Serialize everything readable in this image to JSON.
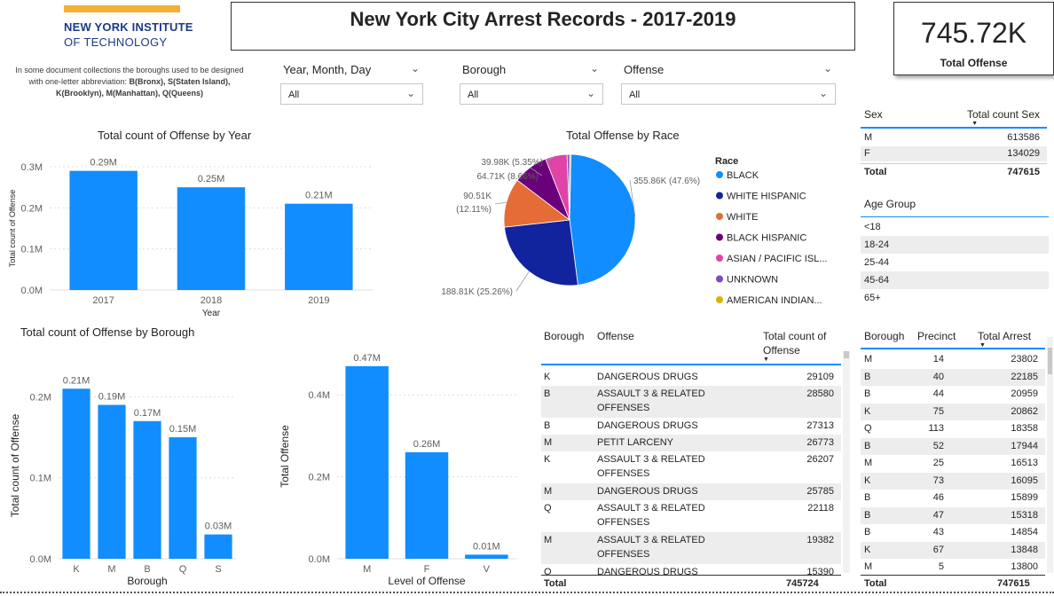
{
  "logo": {
    "line1": "NEW YORK INSTITUTE",
    "line2": "OF TECHNOLOGY"
  },
  "note": {
    "plain": "In some document collections the boroughs used to be designed with one-letter abbreviation: ",
    "bold": "B(Bronx), S(Staten Island), K(Brooklyn), M(Manhattan), Q(Queens)"
  },
  "title": "New York City Arrest Records - 2017-2019",
  "kpi": {
    "value": "745.72K",
    "label": "Total Offense"
  },
  "slicers": [
    {
      "label": "Year, Month, Day",
      "value": "All"
    },
    {
      "label": "Borough",
      "value": "All"
    },
    {
      "label": "Offense",
      "value": "All"
    }
  ],
  "colors": {
    "bar": "#118dff",
    "black": "#118dff",
    "white_hispanic": "#12239e",
    "white": "#e66c37",
    "black_hispanic": "#6b007b",
    "asian": "#e044a7",
    "unknown": "#744ec2",
    "american_indian": "#d9b300"
  },
  "chart_data": [
    {
      "type": "bar",
      "title": "Total count of Offense by Year",
      "xlabel": "Year",
      "ylabel": "Total count of Offense",
      "categories": [
        "2017",
        "2018",
        "2019"
      ],
      "values": [
        0.29,
        0.25,
        0.21
      ],
      "data_labels": [
        "0.29M",
        "0.25M",
        "0.21M"
      ],
      "y_ticks": [
        "0.0M",
        "0.1M",
        "0.2M",
        "0.3M"
      ],
      "ylim": [
        0,
        0.3
      ]
    },
    {
      "type": "pie",
      "title": "Total Offense by Race",
      "legend_title": "Race",
      "legend": "right",
      "slices": [
        {
          "name": "BLACK",
          "value": 355.86,
          "label": "355.86K (47.6%)",
          "color": "#118dff"
        },
        {
          "name": "WHITE HISPANIC",
          "value": 188.81,
          "label": "188.81K (25.26%)",
          "color": "#12239e"
        },
        {
          "name": "WHITE",
          "value": 90.51,
          "label": "90.51K (12.11%)",
          "color": "#e66c37"
        },
        {
          "name": "BLACK HISPANIC",
          "value": 64.71,
          "label": "64.71K (8.66%)",
          "color": "#6b007b"
        },
        {
          "name": "ASIAN / PACIFIC ISL...",
          "value": 39.98,
          "label": "39.98K (5.35%)",
          "color": "#e044a7"
        },
        {
          "name": "UNKNOWN",
          "value": 4.5,
          "label": "",
          "color": "#744ec2"
        },
        {
          "name": "AMERICAN INDIAN...",
          "value": 2.5,
          "label": "",
          "color": "#d9b300"
        }
      ],
      "label_lines": {
        "first": "90.51K",
        "second": "(12.11%)"
      }
    },
    {
      "type": "bar",
      "title": "Total count of Offense by Borough",
      "xlabel": "Borough",
      "ylabel": "Total count of Offense",
      "categories": [
        "K",
        "M",
        "B",
        "Q",
        "S"
      ],
      "values": [
        0.21,
        0.19,
        0.17,
        0.15,
        0.03
      ],
      "data_labels": [
        "0.21M",
        "0.19M",
        "0.17M",
        "0.15M",
        "0.03M"
      ],
      "y_ticks": [
        "0.0M",
        "0.1M",
        "0.2M"
      ],
      "ylim": [
        0,
        0.23
      ]
    },
    {
      "type": "bar",
      "title": "",
      "xlabel": "Level of Offense",
      "ylabel": "Total Offense",
      "categories": [
        "M",
        "F",
        "V"
      ],
      "values": [
        0.47,
        0.26,
        0.01
      ],
      "data_labels": [
        "0.47M",
        "0.26M",
        "0.01M"
      ],
      "y_ticks": [
        "0.0M",
        "0.2M",
        "0.4M"
      ],
      "ylim": [
        0,
        0.5
      ]
    }
  ],
  "sex_table": {
    "headers": [
      "Sex",
      "Total count Sex"
    ],
    "rows": [
      [
        "M",
        "613586"
      ],
      [
        "F",
        "134029"
      ]
    ],
    "total": [
      "Total",
      "747615"
    ]
  },
  "age_group": {
    "title": "Age Group",
    "items": [
      "<18",
      "18-24",
      "25-44",
      "45-64",
      "65+"
    ]
  },
  "offense_table": {
    "headers": [
      "Borough",
      "Offense",
      "Total count of",
      "Offense"
    ],
    "rows": [
      [
        "K",
        "DANGEROUS DRUGS",
        "",
        "29109"
      ],
      [
        "B",
        "ASSAULT 3 & RELATED",
        "OFFENSES",
        "28580"
      ],
      [
        "B",
        "DANGEROUS DRUGS",
        "",
        "27313"
      ],
      [
        "M",
        "PETIT LARCENY",
        "",
        "26773"
      ],
      [
        "K",
        "ASSAULT 3 & RELATED",
        "OFFENSES",
        "26207"
      ],
      [
        "M",
        "DANGEROUS DRUGS",
        "",
        "25785"
      ],
      [
        "Q",
        "ASSAULT 3 & RELATED",
        "OFFENSES",
        "22118"
      ],
      [
        "M",
        "ASSAULT 3 & RELATED",
        "OFFENSES",
        "19382"
      ],
      [
        "Q",
        "DANGEROUS DRUGS",
        "",
        "15390"
      ]
    ],
    "total": [
      "Total",
      "745724"
    ]
  },
  "precinct_table": {
    "headers": [
      "Borough",
      "Precinct",
      "Total Arrest"
    ],
    "rows": [
      [
        "M",
        "14",
        "23802"
      ],
      [
        "B",
        "40",
        "22185"
      ],
      [
        "B",
        "44",
        "20959"
      ],
      [
        "K",
        "75",
        "20862"
      ],
      [
        "Q",
        "113",
        "18358"
      ],
      [
        "B",
        "52",
        "17944"
      ],
      [
        "M",
        "25",
        "16513"
      ],
      [
        "K",
        "73",
        "16095"
      ],
      [
        "B",
        "46",
        "15899"
      ],
      [
        "B",
        "47",
        "15318"
      ],
      [
        "B",
        "43",
        "14854"
      ],
      [
        "K",
        "67",
        "13848"
      ],
      [
        "M",
        "5",
        "13800"
      ]
    ],
    "total": [
      "Total",
      "747615"
    ]
  }
}
